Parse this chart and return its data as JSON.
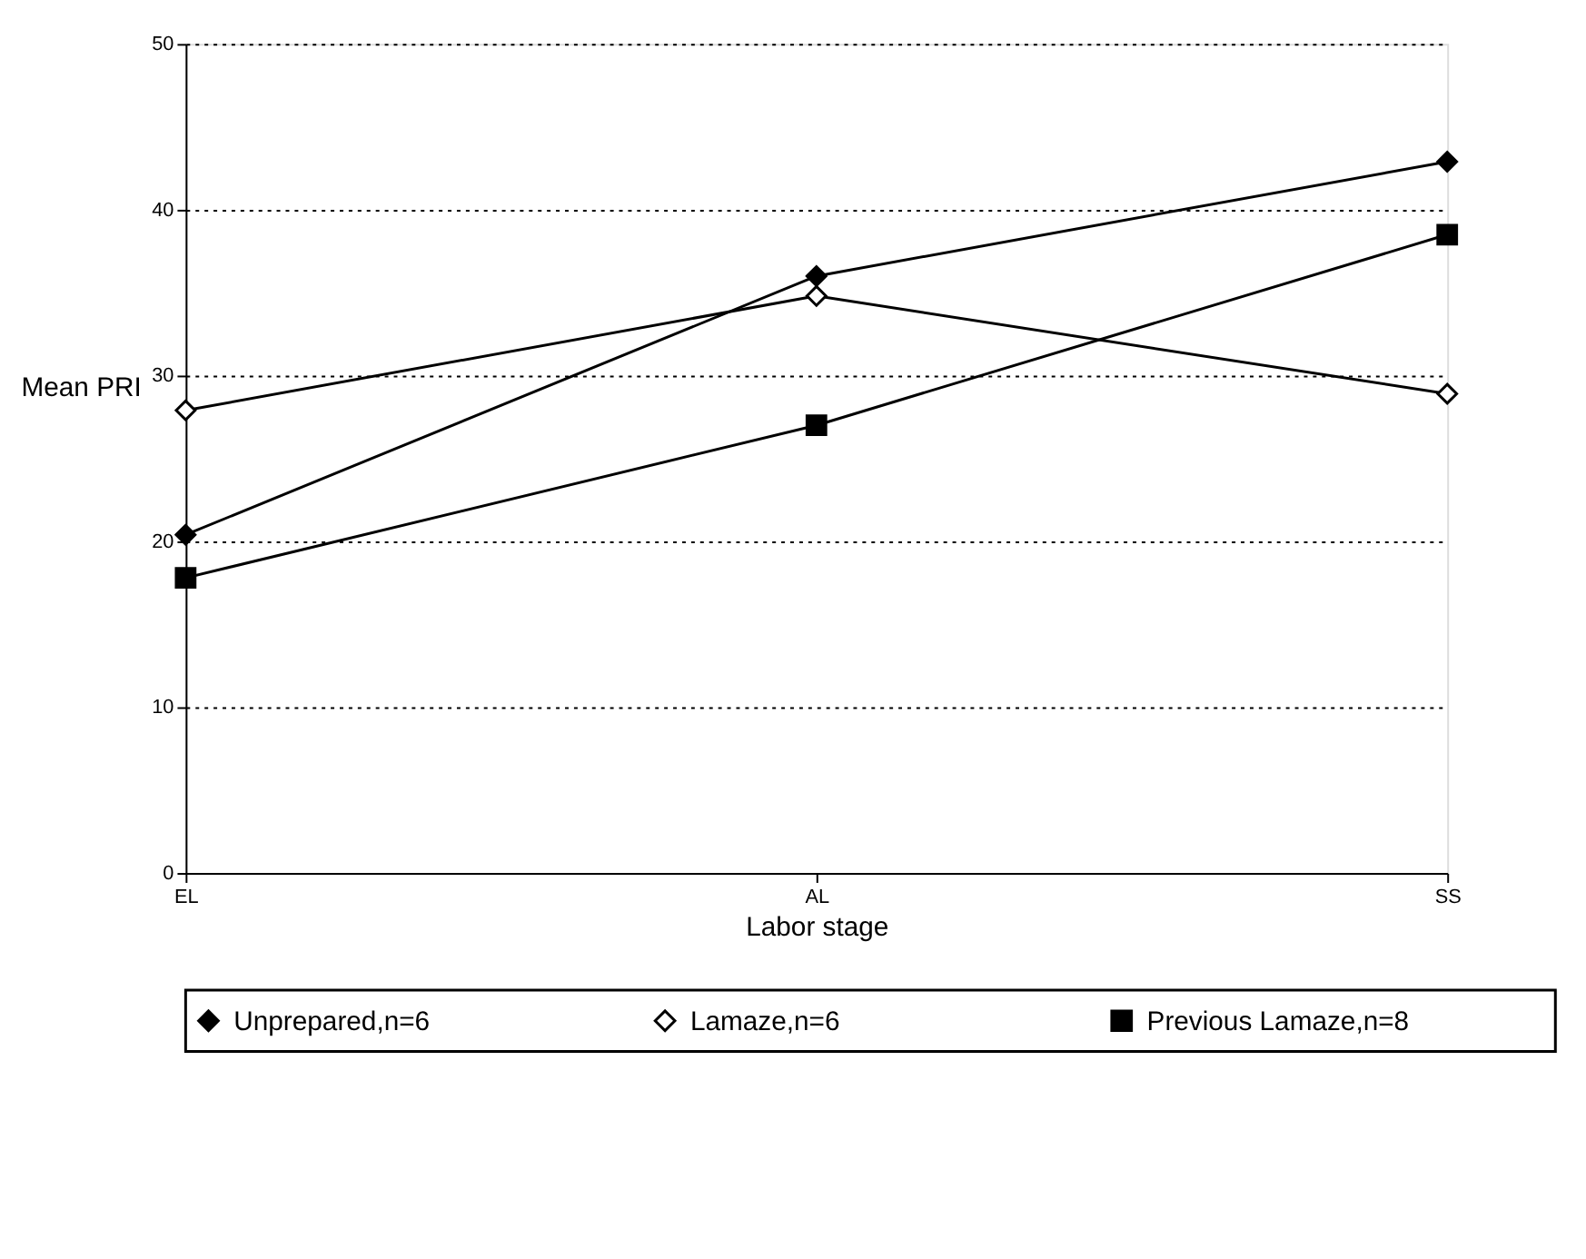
{
  "chart_data": {
    "type": "line",
    "xlabel": "Labor stage",
    "ylabel": "Mean PRI",
    "categories": [
      "EL",
      "AL",
      "SS"
    ],
    "series": [
      {
        "name": "Unprepared,n=6",
        "color": "#000000",
        "marker": "diamond",
        "values": [
          20.4,
          36.0,
          42.9
        ]
      },
      {
        "name": "Lamaze,n=6",
        "color": "#000000",
        "marker": "diamond",
        "values": [
          27.9,
          34.8,
          28.9
        ]
      },
      {
        "name": "Previous Lamaze,n=8",
        "color": "#000000",
        "marker": "square",
        "values": [
          17.8,
          27.0,
          38.5
        ]
      }
    ],
    "ylim": [
      0,
      50
    ],
    "yticks": [
      0,
      10,
      20,
      30,
      40,
      50
    ],
    "grid": "y",
    "legend": "bottom",
    "line_style": "solid"
  }
}
